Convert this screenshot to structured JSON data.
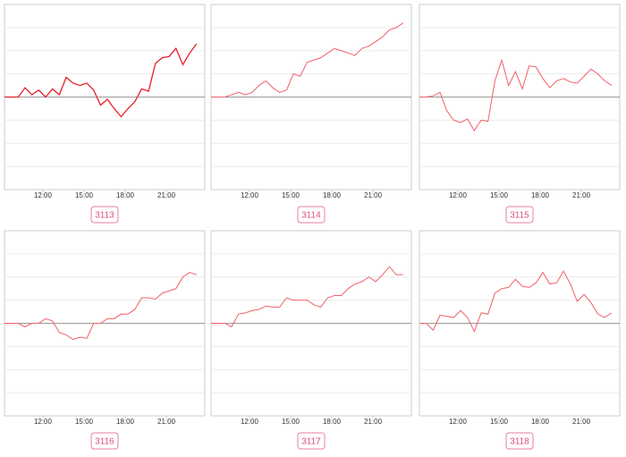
{
  "chart_data": [
    {
      "type": "line",
      "title": "3113",
      "color": "#e8202a",
      "xlim": [
        9.2,
        23.8
      ],
      "ylim": [
        -4,
        4
      ],
      "yticks": [
        -3,
        -2,
        -1,
        0,
        1,
        2,
        3
      ],
      "grid": true,
      "xticks": [
        {
          "value": 12,
          "label": "12:00"
        },
        {
          "value": 15,
          "label": "15:00"
        },
        {
          "value": 18,
          "label": "18:00"
        },
        {
          "value": 21,
          "label": "21:00"
        }
      ],
      "x": [
        9.2,
        9.7,
        10.2,
        10.7,
        11.2,
        11.7,
        12.2,
        12.7,
        13.2,
        13.7,
        14.2,
        14.7,
        15.2,
        15.7,
        16.2,
        16.7,
        17.2,
        17.7,
        18.2,
        18.7,
        19.2,
        19.7,
        20.2,
        20.7,
        21.2,
        21.7,
        22.2,
        22.7,
        23.2
      ],
      "values": [
        0,
        0,
        0,
        0.4,
        0.1,
        0.3,
        0,
        0.35,
        0.1,
        0.85,
        0.6,
        0.5,
        0.6,
        0.3,
        -0.35,
        -0.1,
        -0.5,
        -0.85,
        -0.5,
        -0.2,
        0.35,
        0.25,
        1.45,
        1.7,
        1.75,
        2.1,
        1.4,
        1.9,
        2.3
      ]
    },
    {
      "type": "line",
      "title": "3114",
      "color": "#f06068",
      "xlim": [
        9.2,
        23.8
      ],
      "ylim": [
        -4,
        4
      ],
      "yticks": [
        -3,
        -2,
        -1,
        0,
        1,
        2,
        3
      ],
      "grid": true,
      "xticks": [
        {
          "value": 12,
          "label": "12:00"
        },
        {
          "value": 15,
          "label": "15:00"
        },
        {
          "value": 18,
          "label": "18:00"
        },
        {
          "value": 21,
          "label": "21:00"
        }
      ],
      "x": [
        9.2,
        9.7,
        10.2,
        10.7,
        11.2,
        11.7,
        12.2,
        12.7,
        13.2,
        13.7,
        14.2,
        14.7,
        15.2,
        15.7,
        16.2,
        16.7,
        17.2,
        17.7,
        18.2,
        18.7,
        19.2,
        19.7,
        20.2,
        20.7,
        21.2,
        21.7,
        22.2,
        22.7,
        23.2
      ],
      "values": [
        0,
        0,
        0,
        0.1,
        0.2,
        0.1,
        0.2,
        0.5,
        0.7,
        0.4,
        0.2,
        0.3,
        1.0,
        0.9,
        1.5,
        1.6,
        1.7,
        1.9,
        2.1,
        2.0,
        1.9,
        1.8,
        2.1,
        2.2,
        2.4,
        2.6,
        2.9,
        3.0,
        3.2
      ]
    },
    {
      "type": "line",
      "title": "3115",
      "color": "#f06068",
      "xlim": [
        9.2,
        23.8
      ],
      "ylim": [
        -4,
        4
      ],
      "yticks": [
        -3,
        -2,
        -1,
        0,
        1,
        2,
        3
      ],
      "grid": true,
      "xticks": [
        {
          "value": 12,
          "label": "12:00"
        },
        {
          "value": 15,
          "label": "15:00"
        },
        {
          "value": 18,
          "label": "18:00"
        },
        {
          "value": 21,
          "label": "21:00"
        }
      ],
      "x": [
        9.2,
        9.7,
        10.2,
        10.7,
        11.2,
        11.7,
        12.2,
        12.7,
        13.2,
        13.7,
        14.2,
        14.7,
        15.2,
        15.7,
        16.2,
        16.7,
        17.2,
        17.7,
        18.2,
        18.7,
        19.2,
        19.7,
        20.2,
        20.7,
        21.2,
        21.7,
        22.2,
        22.7,
        23.2
      ],
      "values": [
        0,
        0,
        0.05,
        0.2,
        -0.6,
        -1.0,
        -1.1,
        -0.95,
        -1.45,
        -1.0,
        -1.05,
        0.7,
        1.6,
        0.5,
        1.1,
        0.35,
        1.35,
        1.3,
        0.8,
        0.4,
        0.7,
        0.8,
        0.65,
        0.6,
        0.9,
        1.2,
        1.0,
        0.7,
        0.5
      ]
    },
    {
      "type": "line",
      "title": "3116",
      "color": "#f06068",
      "xlim": [
        9.2,
        23.8
      ],
      "ylim": [
        -4,
        4
      ],
      "yticks": [
        -3,
        -2,
        -1,
        0,
        1,
        2,
        3
      ],
      "grid": true,
      "xticks": [
        {
          "value": 12,
          "label": "12:00"
        },
        {
          "value": 15,
          "label": "15:00"
        },
        {
          "value": 18,
          "label": "18:00"
        },
        {
          "value": 21,
          "label": "21:00"
        }
      ],
      "x": [
        9.2,
        9.7,
        10.2,
        10.7,
        11.2,
        11.7,
        12.2,
        12.7,
        13.2,
        13.7,
        14.2,
        14.7,
        15.2,
        15.7,
        16.2,
        16.7,
        17.2,
        17.7,
        18.2,
        18.7,
        19.2,
        19.7,
        20.2,
        20.7,
        21.2,
        21.7,
        22.2,
        22.7,
        23.2
      ],
      "values": [
        0,
        0,
        0,
        -0.15,
        0,
        0,
        0.2,
        0.1,
        -0.4,
        -0.5,
        -0.7,
        -0.6,
        -0.65,
        0,
        0,
        0.2,
        0.2,
        0.4,
        0.4,
        0.6,
        1.1,
        1.1,
        1.05,
        1.3,
        1.4,
        1.5,
        2.0,
        2.2,
        2.1
      ]
    },
    {
      "type": "line",
      "title": "3117",
      "color": "#f06068",
      "xlim": [
        9.2,
        23.8
      ],
      "ylim": [
        -4,
        4
      ],
      "yticks": [
        -3,
        -2,
        -1,
        0,
        1,
        2,
        3
      ],
      "grid": true,
      "xticks": [
        {
          "value": 12,
          "label": "12:00"
        },
        {
          "value": 15,
          "label": "15:00"
        },
        {
          "value": 18,
          "label": "18:00"
        },
        {
          "value": 21,
          "label": "21:00"
        }
      ],
      "x": [
        9.2,
        9.7,
        10.2,
        10.7,
        11.2,
        11.7,
        12.2,
        12.7,
        13.2,
        13.7,
        14.2,
        14.7,
        15.2,
        15.7,
        16.2,
        16.7,
        17.2,
        17.7,
        18.2,
        18.7,
        19.2,
        19.7,
        20.2,
        20.7,
        21.2,
        21.7,
        22.2,
        22.7,
        23.2
      ],
      "values": [
        0,
        0,
        0,
        -0.15,
        0.4,
        0.45,
        0.55,
        0.6,
        0.75,
        0.7,
        0.7,
        1.1,
        1.0,
        1.0,
        1.0,
        0.8,
        0.7,
        1.1,
        1.2,
        1.2,
        1.5,
        1.7,
        1.8,
        2.0,
        1.8,
        2.1,
        2.45,
        2.1,
        2.1
      ]
    },
    {
      "type": "line",
      "title": "3118",
      "color": "#f06068",
      "xlim": [
        9.2,
        23.8
      ],
      "ylim": [
        -4,
        4
      ],
      "yticks": [
        -3,
        -2,
        -1,
        0,
        1,
        2,
        3
      ],
      "grid": true,
      "xticks": [
        {
          "value": 12,
          "label": "12:00"
        },
        {
          "value": 15,
          "label": "15:00"
        },
        {
          "value": 18,
          "label": "18:00"
        },
        {
          "value": 21,
          "label": "21:00"
        }
      ],
      "x": [
        9.2,
        9.7,
        10.2,
        10.7,
        11.2,
        11.7,
        12.2,
        12.7,
        13.2,
        13.7,
        14.2,
        14.7,
        15.2,
        15.7,
        16.2,
        16.7,
        17.2,
        17.7,
        18.2,
        18.7,
        19.2,
        19.7,
        20.2,
        20.7,
        21.2,
        21.7,
        22.2,
        22.7,
        23.2
      ],
      "values": [
        0,
        0,
        -0.3,
        0.35,
        0.3,
        0.25,
        0.55,
        0.25,
        -0.35,
        0.45,
        0.4,
        1.3,
        1.5,
        1.55,
        1.9,
        1.6,
        1.55,
        1.75,
        2.2,
        1.7,
        1.75,
        2.25,
        1.7,
        0.95,
        1.25,
        0.9,
        0.4,
        0.25,
        0.45
      ]
    }
  ]
}
